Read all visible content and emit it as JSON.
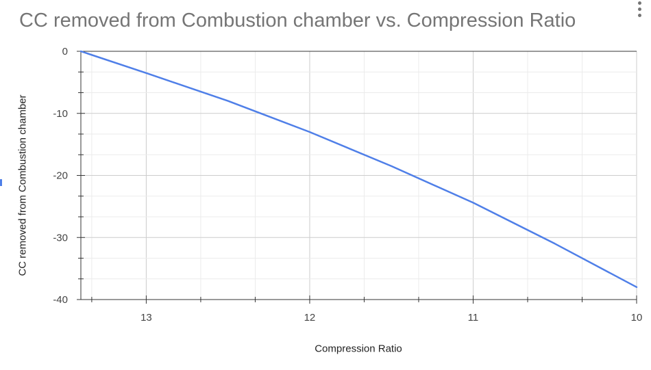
{
  "chart_data": {
    "type": "line",
    "title": "CC removed from Combustion chamber vs. Compression Ratio",
    "xlabel": "Compression Ratio",
    "ylabel": "CC removed from Combustion chamber",
    "x_reversed": true,
    "xlim": [
      13.4,
      10
    ],
    "ylim": [
      -40,
      0
    ],
    "x_ticks": [
      13,
      12,
      11,
      10
    ],
    "y_ticks": [
      0,
      -10,
      -20,
      -30,
      -40
    ],
    "grid": true,
    "series": [
      {
        "color": "#4f7fe8",
        "x": [
          13.4,
          13.0,
          12.5,
          12.0,
          11.5,
          11.0,
          10.5,
          10.0
        ],
        "y": [
          0,
          -3.5,
          -8.0,
          -13.0,
          -18.5,
          -24.4,
          -31.0,
          -38.0
        ]
      }
    ]
  }
}
